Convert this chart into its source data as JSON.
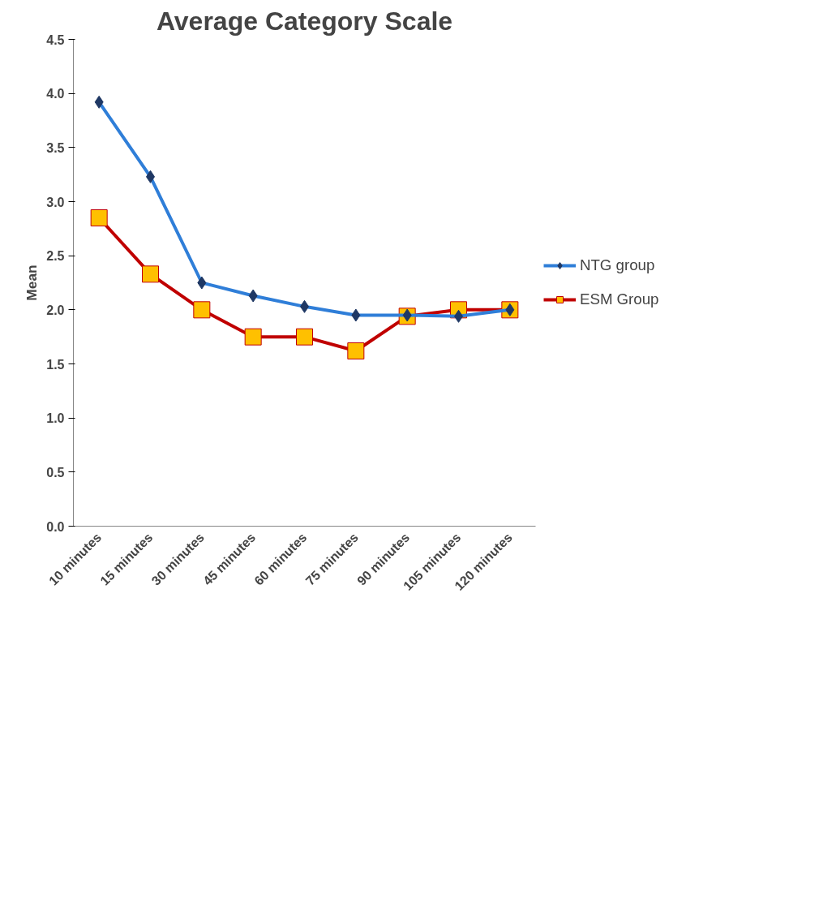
{
  "chart_data": {
    "type": "line",
    "title": "Average Category Scale",
    "ylabel": "Mean",
    "categories": [
      "10 minutes",
      "15 minutes",
      "30 minutes",
      "45 minutes",
      "60 minutes",
      "75 minutes",
      "90 minutes",
      "105 minutes",
      "120 minutes"
    ],
    "series": [
      {
        "name": "NTG group",
        "color": "#2f7ed8",
        "marker": "diamond",
        "values": [
          3.92,
          3.23,
          2.25,
          2.13,
          2.03,
          1.95,
          1.95,
          1.94,
          2.0
        ]
      },
      {
        "name": "ESM Group",
        "color": "#c00000",
        "marker": "square",
        "values": [
          2.85,
          2.33,
          2.0,
          1.75,
          1.75,
          1.62,
          1.94,
          2.0,
          2.0
        ]
      }
    ],
    "ylim": [
      0,
      4.5
    ],
    "yticks": [
      {
        "value": 0,
        "label": "0.0"
      },
      {
        "value": 0.5,
        "label": "0.5"
      },
      {
        "value": 1,
        "label": "1.0"
      },
      {
        "value": 1.5,
        "label": "1.5"
      },
      {
        "value": 2,
        "label": "2.0"
      },
      {
        "value": 2.5,
        "label": "2.5"
      },
      {
        "value": 3,
        "label": "3.0"
      },
      {
        "value": 3.5,
        "label": "3.5"
      },
      {
        "value": 4,
        "label": "4.0"
      },
      {
        "value": 4.5,
        "label": "4.5"
      }
    ],
    "grid": false,
    "legend": "right",
    "line_style": "solid"
  }
}
